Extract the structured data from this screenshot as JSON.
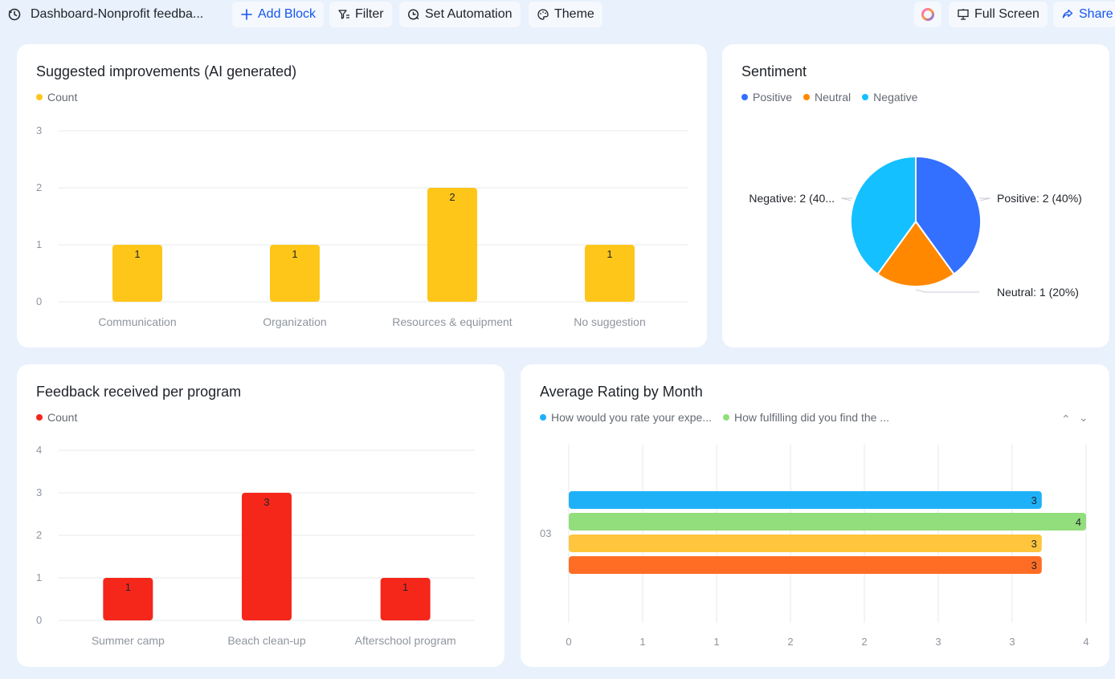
{
  "toolbar": {
    "dashboard_title": "Dashboard-Nonprofit feedba...",
    "add_block": "Add Block",
    "filter": "Filter",
    "set_automation": "Set Automation",
    "theme": "Theme",
    "full_screen": "Full Screen",
    "share": "Share",
    "icons": [
      "history-icon",
      "plus-icon",
      "filter-icon",
      "automation-icon",
      "theme-icon",
      "ai-assistant-icon",
      "presentation-icon",
      "share-icon"
    ]
  },
  "colors": {
    "accent": "#1456f0",
    "yellow": "#ffc61a",
    "red": "#f5271b",
    "positive": "#3370ff",
    "neutral": "#ff8800",
    "negative": "#14c0ff",
    "series_blue": "#1fb1f7",
    "series_green": "#92dd7c",
    "series_yellow": "#ffc53d",
    "series_orange": "#ff6d24"
  },
  "cards": {
    "improvements": {
      "title": "Suggested improvements (AI generated)",
      "legend": [
        {
          "label": "Count",
          "color": "#ffc61a"
        }
      ]
    },
    "sentiment": {
      "title": "Sentiment",
      "legend": [
        {
          "label": "Positive",
          "color": "#3370ff"
        },
        {
          "label": "Neutral",
          "color": "#ff8800"
        },
        {
          "label": "Negative",
          "color": "#14c0ff"
        }
      ]
    },
    "feedback": {
      "title": "Feedback received per program",
      "legend": [
        {
          "label": "Count",
          "color": "#f5271b"
        }
      ]
    },
    "rating": {
      "title": "Average Rating by Month",
      "legend": [
        {
          "label": "How would you rate your expe...",
          "color": "#1fb1f7"
        },
        {
          "label": "How fulfilling did you find the ...",
          "color": "#92dd7c"
        }
      ]
    }
  },
  "chart_data": [
    {
      "type": "bar",
      "title": "Suggested improvements (AI generated)",
      "categories": [
        "Communication",
        "Organization",
        "Resources & equipment",
        "No suggestion"
      ],
      "series": [
        {
          "name": "Count",
          "values": [
            1,
            1,
            2,
            1
          ]
        }
      ],
      "y_ticks": [
        "0",
        "1",
        "2",
        "3"
      ],
      "ylim": [
        0,
        3
      ],
      "data_labels": [
        "1",
        "1",
        "2",
        "1"
      ],
      "grid": true,
      "legend": "top-left"
    },
    {
      "type": "pie",
      "title": "Sentiment",
      "slices": [
        {
          "name": "Positive",
          "value": 2,
          "label": "Positive: 2 (40%)"
        },
        {
          "name": "Neutral",
          "value": 1,
          "label": "Neutral: 1 (20%)"
        },
        {
          "name": "Negative",
          "value": 2,
          "label": "Negative: 2 (40..."
        }
      ],
      "legend": "top-left"
    },
    {
      "type": "bar",
      "title": "Feedback received per program",
      "categories": [
        "Summer camp",
        "Beach clean-up",
        "Afterschool program"
      ],
      "series": [
        {
          "name": "Count",
          "values": [
            1,
            3,
            1
          ]
        }
      ],
      "y_ticks": [
        "0",
        "1",
        "2",
        "3",
        "4"
      ],
      "ylim": [
        0,
        4
      ],
      "data_labels": [
        "1",
        "3",
        "1"
      ],
      "grid": true,
      "legend": "top-left"
    },
    {
      "type": "bar",
      "orientation": "horizontal",
      "title": "Average Rating by Month",
      "categories": [
        "03"
      ],
      "series": [
        {
          "values": [
            3.2
          ]
        },
        {
          "values": [
            3.5
          ]
        },
        {
          "values": [
            3.2
          ]
        },
        {
          "values": [
            3.2
          ]
        }
      ],
      "data_labels": [
        "3",
        "4",
        "3",
        "3"
      ],
      "x_ticks": [
        "0",
        "1",
        "1",
        "2",
        "2",
        "3",
        "3",
        "4"
      ],
      "xlim": [
        0,
        3.5
      ],
      "grid": true,
      "legend": "top-left"
    }
  ]
}
